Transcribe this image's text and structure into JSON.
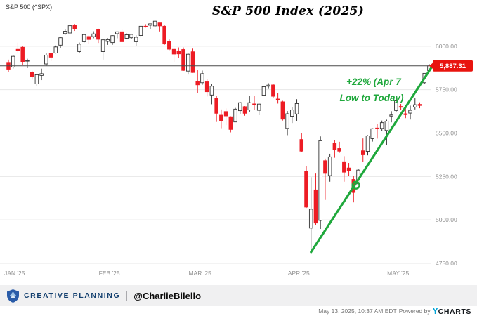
{
  "chart_data": {
    "type": "candlestick",
    "title": "S&P 500 Index (2025)",
    "series_label": "S&P 500 (^SPX)",
    "last_price": "5,887.31",
    "last_price_value": 5887.31,
    "ylim": [
      4740,
      6165
    ],
    "y_ticks": [
      6000,
      5750,
      5500,
      5250,
      5000,
      4750
    ],
    "y_tick_labels": [
      "6000.00",
      "5750.00",
      "5500.00",
      "5250.00",
      "5000.00",
      "4750.00"
    ],
    "x_tick_labels": [
      "JAN '25",
      "FEB '25",
      "MAR '25",
      "APR '25",
      "MAY '25"
    ],
    "month_start_indices": [
      0,
      20,
      39,
      60,
      81
    ],
    "grid": true,
    "annotation": {
      "line1": "+22% (Apr 7",
      "line2": "Low to Today)",
      "color": "#1fa83c"
    },
    "trendline": {
      "x1_index": 64,
      "y1_value": 4815,
      "x2_index": 90,
      "y2_value": 5900,
      "color": "#1fa83c",
      "note": "Apr 7 low to May 13 close"
    },
    "trendline_loop": {
      "index": 73.5,
      "value": 5200
    },
    "colors": {
      "up_fill": "#ffffff",
      "up_stroke": "#333333",
      "down": "#ed1c24",
      "grid": "#e7e7e7",
      "price_line": "#4a4a4a",
      "badge_bg": "#e8140f",
      "axis_text": "#8f8f8f"
    },
    "candles": [
      [
        5903,
        5923,
        5853,
        5868
      ],
      [
        5880,
        5949,
        5872,
        5942
      ],
      [
        5982,
        6021,
        5960,
        5975
      ],
      [
        5994,
        6000,
        5890,
        5909
      ],
      [
        5914,
        5928,
        5874,
        5918
      ],
      [
        5850,
        5858,
        5808,
        5827
      ],
      [
        5783,
        5840,
        5773,
        5836
      ],
      [
        5832,
        5871,
        5805,
        5842
      ],
      [
        5898,
        5960,
        5886,
        5949
      ],
      [
        5958,
        5964,
        5915,
        5937
      ],
      [
        5961,
        6004,
        5958,
        5996
      ],
      [
        6006,
        6051,
        5990,
        6049
      ],
      [
        6073,
        6100,
        6066,
        6086
      ],
      [
        6076,
        6120,
        6064,
        6118
      ],
      [
        6120,
        6128,
        6088,
        6101
      ],
      [
        5969,
        6021,
        5962,
        6012
      ],
      [
        6026,
        6070,
        6021,
        6067
      ],
      [
        6056,
        6062,
        6013,
        6039
      ],
      [
        6055,
        6086,
        6046,
        6071
      ],
      [
        6096,
        6101,
        6019,
        6040
      ],
      [
        5969,
        6042,
        5923,
        6037
      ],
      [
        6028,
        6046,
        6008,
        6038
      ],
      [
        6021,
        6063,
        6008,
        6061
      ],
      [
        6072,
        6084,
        6046,
        6083
      ],
      [
        6083,
        6101,
        6020,
        6026
      ],
      [
        6046,
        6073,
        6044,
        6066
      ],
      [
        6049,
        6070,
        6041,
        6068
      ],
      [
        6026,
        6063,
        6003,
        6052
      ],
      [
        6062,
        6116,
        6050,
        6115
      ],
      [
        6115,
        6127,
        6107,
        6114
      ],
      [
        6121,
        6130,
        6099,
        6129
      ],
      [
        6117,
        6147,
        6111,
        6144
      ],
      [
        6134,
        6135,
        6085,
        6117
      ],
      [
        6115,
        6120,
        6008,
        6013
      ],
      [
        6026,
        6043,
        5977,
        5983
      ],
      [
        5982,
        5992,
        5908,
        5955
      ],
      [
        5970,
        5993,
        5932,
        5956
      ],
      [
        5981,
        5993,
        5858,
        5861
      ],
      [
        5857,
        5959,
        5837,
        5954
      ],
      [
        5968,
        5986,
        5847,
        5849
      ],
      [
        5798,
        5865,
        5732,
        5778
      ],
      [
        5790,
        5860,
        5778,
        5842
      ],
      [
        5795,
        5812,
        5711,
        5738
      ],
      [
        5719,
        5783,
        5666,
        5770
      ],
      [
        5700,
        5713,
        5564,
        5614
      ],
      [
        5603,
        5636,
        5528,
        5572
      ],
      [
        5624,
        5642,
        5546,
        5599
      ],
      [
        5594,
        5597,
        5504,
        5521
      ],
      [
        5564,
        5645,
        5563,
        5638
      ],
      [
        5629,
        5680,
        5611,
        5675
      ],
      [
        5652,
        5655,
        5600,
        5614
      ],
      [
        5633,
        5715,
        5622,
        5675
      ],
      [
        5668,
        5714,
        5632,
        5662
      ],
      [
        5631,
        5670,
        5603,
        5667
      ],
      [
        5718,
        5772,
        5715,
        5767
      ],
      [
        5770,
        5787,
        5754,
        5776
      ],
      [
        5777,
        5783,
        5700,
        5712
      ],
      [
        5696,
        5732,
        5670,
        5693
      ],
      [
        5680,
        5686,
        5572,
        5580
      ],
      [
        5527,
        5627,
        5488,
        5611
      ],
      [
        5597,
        5650,
        5558,
        5633
      ],
      [
        5610,
        5695,
        5571,
        5670
      ],
      [
        5463,
        5499,
        5390,
        5396
      ],
      [
        5280,
        5310,
        5069,
        5074
      ],
      [
        4953,
        5246,
        4835,
        5062
      ],
      [
        5173,
        5267,
        4970,
        4982
      ],
      [
        4997,
        5481,
        4948,
        5456
      ],
      [
        5341,
        5353,
        5115,
        5268
      ],
      [
        5255,
        5381,
        5220,
        5363
      ],
      [
        5442,
        5459,
        5358,
        5405
      ],
      [
        5411,
        5450,
        5386,
        5396
      ],
      [
        5335,
        5367,
        5220,
        5275
      ],
      [
        5299,
        5328,
        5255,
        5282
      ],
      [
        5233,
        5252,
        5101,
        5158
      ],
      [
        5208,
        5293,
        5206,
        5287
      ],
      [
        5398,
        5469,
        5334,
        5375
      ],
      [
        5395,
        5488,
        5372,
        5484
      ],
      [
        5468,
        5528,
        5451,
        5525
      ],
      [
        5529,
        5553,
        5468,
        5528
      ],
      [
        5527,
        5572,
        5511,
        5560
      ],
      [
        5515,
        5577,
        5433,
        5569
      ],
      [
        5598,
        5626,
        5562,
        5604
      ],
      [
        5630,
        5700,
        5620,
        5686
      ],
      [
        5653,
        5668,
        5634,
        5650
      ],
      [
        5611,
        5650,
        5586,
        5606
      ],
      [
        5615,
        5658,
        5578,
        5631
      ],
      [
        5650,
        5700,
        5636,
        5663
      ],
      [
        5665,
        5677,
        5643,
        5659
      ],
      [
        5790,
        5845,
        5781,
        5844
      ],
      [
        5860,
        5897,
        5852,
        5887
      ]
    ]
  },
  "footer": {
    "brand": "CREATIVE PLANNING",
    "handle": "@CharlieBilello",
    "timestamp": "May 13, 2025, 10:37 AM EDT",
    "powered_by": "Powered by",
    "ycharts_y": "Y",
    "ycharts_rest": "CHARTS"
  }
}
